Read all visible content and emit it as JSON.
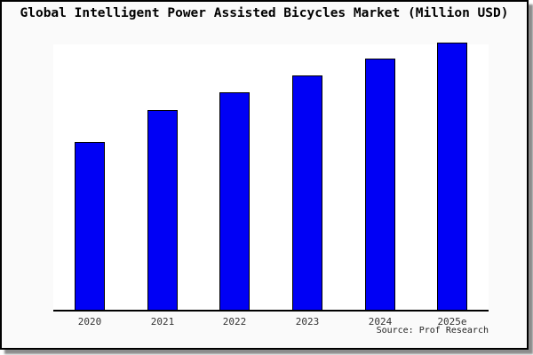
{
  "chart_data": {
    "type": "bar",
    "title": "Global Intelligent Power Assisted Bicycles Market (Million USD)",
    "categories": [
      "2020",
      "2021",
      "2022",
      "2023",
      "2024",
      "2025e"
    ],
    "values": [
      62.8,
      74.8,
      81.4,
      87.7,
      94.0,
      100.0
    ],
    "value_basis": "relative index, tallest bar (2025e) = 100; no y-axis ticks shown",
    "xlabel": "",
    "ylabel": "",
    "ylim": [
      0,
      100
    ],
    "grid": false,
    "legend": false,
    "y_axis_visible": false,
    "bar_color": "#0000f5",
    "bar_edge_color": "#000000"
  },
  "source": "Source: Prof Research",
  "colors": {
    "figure_background": "#fafafa",
    "plot_background": "#ffffff",
    "frame_border": "#000000",
    "axis_line": "#000000",
    "tick_label": "#333333"
  }
}
